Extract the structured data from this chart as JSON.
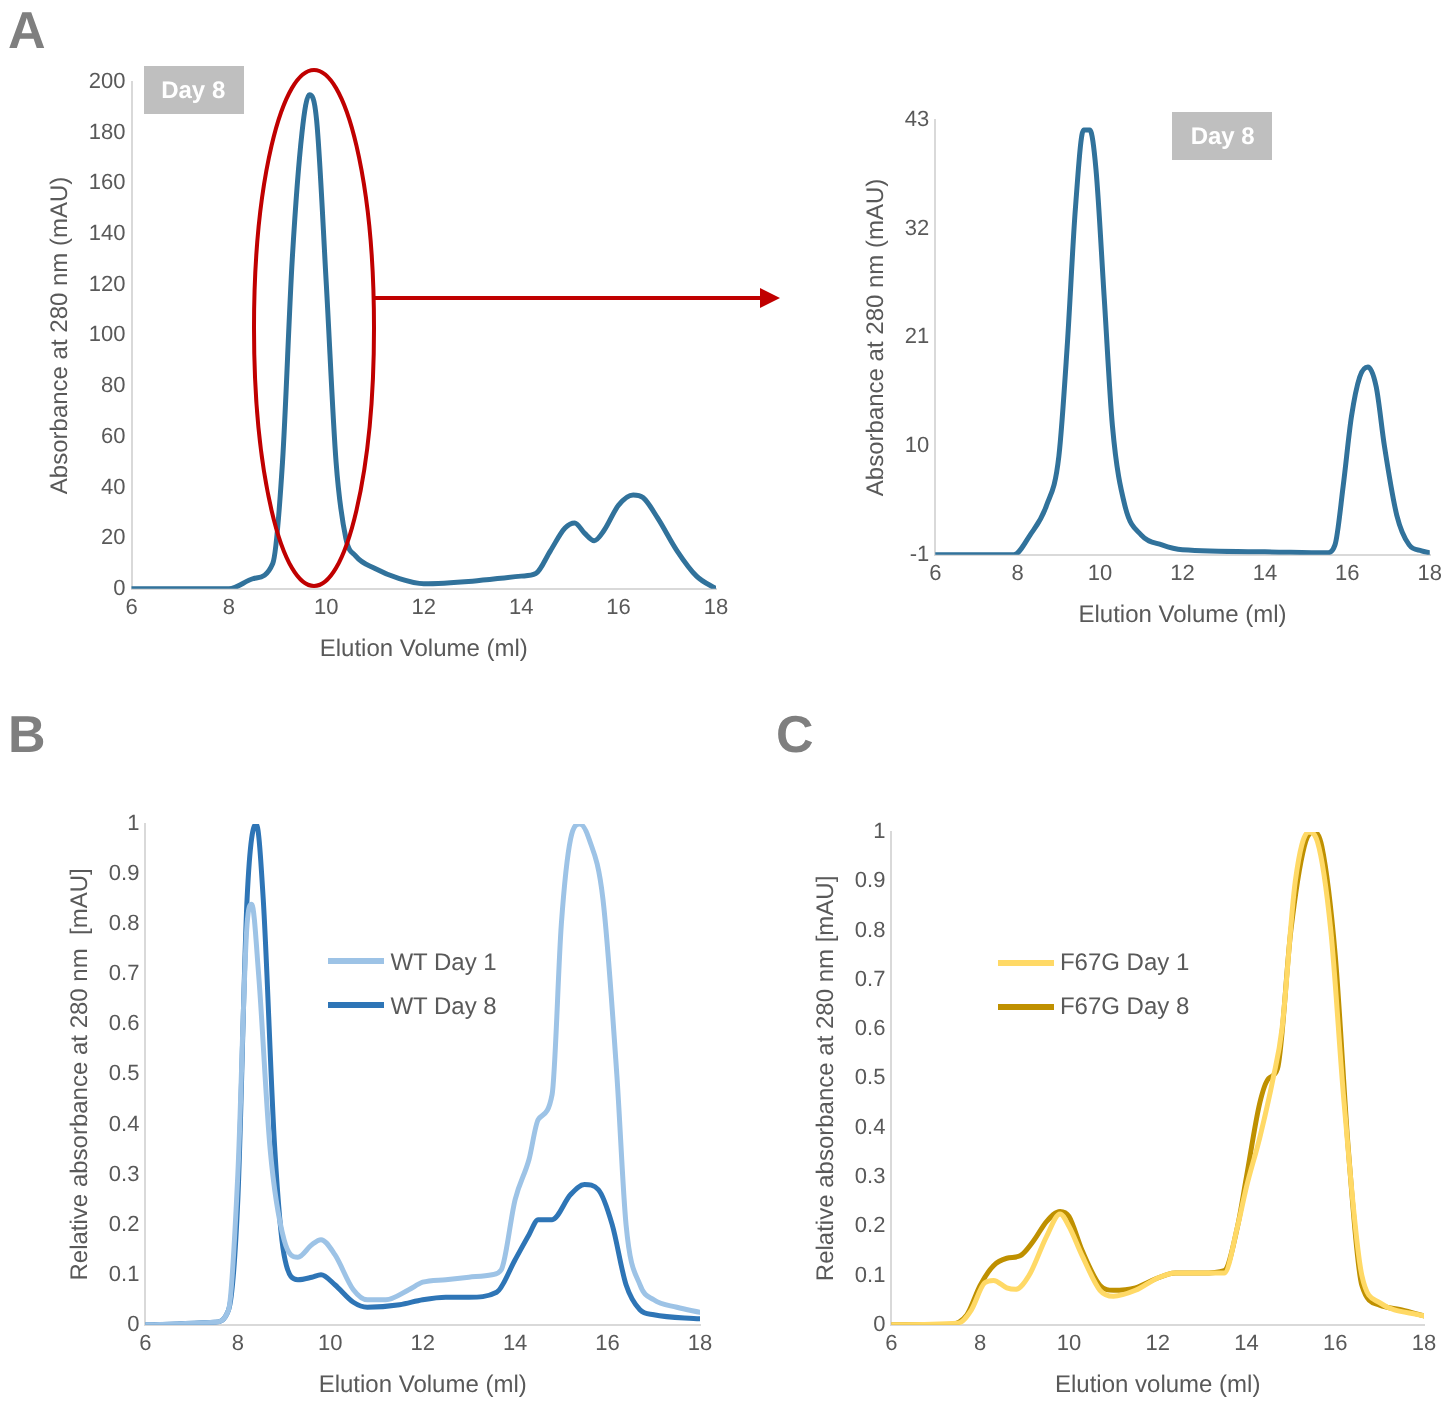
{
  "chart_data": [
    {
      "type": "line",
      "title": "A",
      "xlabel": "Elution Volume (ml)",
      "ylabel": "Absorbance at 280 nm (mAU)",
      "annotations": [
        "Day 8"
      ],
      "xlim": [
        6,
        18
      ],
      "xticks": [
        6,
        8,
        10,
        12,
        14,
        16,
        18
      ],
      "ylim": [
        0,
        200
      ],
      "yticks": [
        0,
        20,
        40,
        60,
        80,
        100,
        120,
        140,
        160,
        180,
        200
      ],
      "grid": false,
      "legend": false,
      "series": [
        {
          "color": "#31729b",
          "x": [
            6,
            8,
            8.5,
            8.9,
            9.1,
            9.3,
            9.5,
            9.65,
            9.8,
            10,
            10.2,
            10.4,
            10.6,
            11,
            11.5,
            12,
            13,
            14,
            14.3,
            14.6,
            14.9,
            15.1,
            15.3,
            15.5,
            15.7,
            16,
            16.3,
            16.5,
            16.8,
            17.2,
            17.6,
            18
          ],
          "values": [
            0,
            0,
            4,
            10,
            50,
            130,
            180,
            195,
            185,
            120,
            50,
            20,
            13,
            8,
            4,
            2,
            3,
            5,
            6,
            15,
            24,
            26,
            22,
            19,
            23,
            33,
            37,
            36,
            28,
            15,
            5,
            0
          ]
        }
      ]
    },
    {
      "type": "line",
      "xlabel": "Elution Volume (ml)",
      "ylabel": "Absorbance at 280 nm (mAU)",
      "annotations": [
        "Day 8"
      ],
      "xlim": [
        6,
        18
      ],
      "xticks": [
        6,
        8,
        10,
        12,
        14,
        16,
        18
      ],
      "ylim": [
        -1,
        43
      ],
      "yticks": [
        -1,
        10,
        21,
        32,
        43
      ],
      "grid": false,
      "legend": false,
      "series": [
        {
          "color": "#31729b",
          "x": [
            6,
            7.9,
            8.3,
            8.7,
            9,
            9.2,
            9.4,
            9.6,
            9.75,
            9.9,
            10.1,
            10.3,
            10.6,
            11,
            11.5,
            12,
            14,
            15.5,
            15.7,
            15.9,
            16.1,
            16.3,
            16.5,
            16.7,
            16.9,
            17.2,
            17.5,
            17.8,
            18
          ],
          "values": [
            -1,
            -1,
            1,
            4,
            9,
            20,
            34,
            42,
            42,
            38,
            25,
            12,
            4,
            1,
            0,
            -0.5,
            -0.7,
            -0.8,
            0,
            6,
            13,
            17,
            18,
            16,
            10,
            3,
            0,
            -0.6,
            -0.8
          ]
        }
      ]
    },
    {
      "type": "line",
      "title": "B",
      "xlabel": "Elution Volume (ml)",
      "ylabel": "Relative absorbance at 280 nm  [mAU]",
      "xlim": [
        6,
        18
      ],
      "xticks": [
        6,
        8,
        10,
        12,
        14,
        16,
        18
      ],
      "ylim": [
        0,
        1
      ],
      "yticks": [
        0,
        0.1,
        0.2,
        0.3,
        0.4,
        0.5,
        0.6,
        0.7,
        0.8,
        0.9,
        1
      ],
      "grid": false,
      "legend": "top left",
      "series": [
        {
          "name": "WT Day 1",
          "color": "#9dc3e6",
          "x": [
            6,
            7.5,
            7.8,
            8,
            8.2,
            8.3,
            8.45,
            8.7,
            9,
            9.3,
            9.6,
            9.8,
            10.1,
            10.5,
            10.8,
            11.2,
            11.7,
            12,
            12.5,
            13,
            13.5,
            13.7,
            14,
            14.3,
            14.5,
            14.8,
            15,
            15.2,
            15.4,
            15.6,
            15.9,
            16.2,
            16.4,
            16.7,
            17,
            17.5,
            18
          ],
          "values": [
            0,
            0.005,
            0.03,
            0.3,
            0.8,
            0.84,
            0.7,
            0.35,
            0.17,
            0.135,
            0.16,
            0.17,
            0.14,
            0.07,
            0.05,
            0.05,
            0.07,
            0.085,
            0.09,
            0.095,
            0.1,
            0.11,
            0.25,
            0.33,
            0.41,
            0.46,
            0.8,
            0.97,
            1,
            0.97,
            0.85,
            0.5,
            0.2,
            0.08,
            0.05,
            0.035,
            0.025
          ]
        },
        {
          "name": "WT Day 8",
          "color": "#2e75b6",
          "x": [
            6,
            7.5,
            7.8,
            8,
            8.2,
            8.4,
            8.55,
            8.8,
            9,
            9.3,
            9.6,
            9.8,
            10.1,
            10.5,
            10.8,
            11.5,
            12,
            12.5,
            13,
            13.6,
            14,
            14.3,
            14.5,
            14.8,
            15.2,
            15.5,
            15.8,
            16.1,
            16.4,
            16.7,
            17,
            18
          ],
          "values": [
            0,
            0.005,
            0.03,
            0.25,
            0.85,
            1,
            0.85,
            0.35,
            0.14,
            0.09,
            0.095,
            0.1,
            0.08,
            0.045,
            0.035,
            0.04,
            0.05,
            0.055,
            0.055,
            0.065,
            0.13,
            0.18,
            0.21,
            0.21,
            0.26,
            0.28,
            0.27,
            0.2,
            0.08,
            0.03,
            0.02,
            0.012
          ]
        }
      ]
    },
    {
      "type": "line",
      "title": "C",
      "xlabel": "Elution volume (ml)",
      "ylabel": "Relative absorbance at 280 nm [mAU]",
      "xlim": [
        6,
        18
      ],
      "xticks": [
        6,
        8,
        10,
        12,
        14,
        16,
        18
      ],
      "ylim": [
        0,
        1
      ],
      "yticks": [
        0,
        0.1,
        0.2,
        0.3,
        0.4,
        0.5,
        0.6,
        0.7,
        0.8,
        0.9,
        1
      ],
      "grid": false,
      "legend": "top left",
      "series": [
        {
          "name": "F67G Day 1",
          "color": "#ffd966",
          "x": [
            6,
            7.5,
            7.8,
            8.1,
            8.3,
            8.6,
            8.8,
            9.1,
            9.5,
            9.8,
            10,
            10.3,
            10.7,
            11,
            11.5,
            12,
            12.4,
            13,
            13.5,
            13.8,
            14,
            14.3,
            14.6,
            14.8,
            15.1,
            15.4,
            15.6,
            15.9,
            16.2,
            16.6,
            17,
            18
          ],
          "values": [
            0,
            0.003,
            0.03,
            0.085,
            0.09,
            0.075,
            0.072,
            0.1,
            0.18,
            0.225,
            0.2,
            0.14,
            0.07,
            0.058,
            0.07,
            0.095,
            0.105,
            0.105,
            0.105,
            0.2,
            0.28,
            0.38,
            0.5,
            0.6,
            0.9,
            1,
            0.98,
            0.8,
            0.45,
            0.1,
            0.045,
            0.018
          ]
        },
        {
          "name": "F67G Day 8",
          "color": "#bf9000",
          "x": [
            6,
            7.3,
            7.7,
            8,
            8.3,
            8.6,
            8.9,
            9.2,
            9.5,
            9.8,
            10,
            10.3,
            10.7,
            11,
            11.5,
            12,
            12.4,
            13,
            13.5,
            13.8,
            14,
            14.3,
            14.5,
            14.7,
            15,
            15.3,
            15.5,
            15.7,
            16,
            16.3,
            16.6,
            17,
            17.5,
            18
          ],
          "values": [
            0,
            0,
            0.02,
            0.08,
            0.12,
            0.135,
            0.14,
            0.17,
            0.21,
            0.23,
            0.22,
            0.15,
            0.08,
            0.07,
            0.075,
            0.095,
            0.105,
            0.105,
            0.11,
            0.2,
            0.3,
            0.45,
            0.5,
            0.52,
            0.8,
            0.97,
            1,
            0.97,
            0.75,
            0.35,
            0.08,
            0.04,
            0.03,
            0.018
          ]
        }
      ]
    }
  ]
}
